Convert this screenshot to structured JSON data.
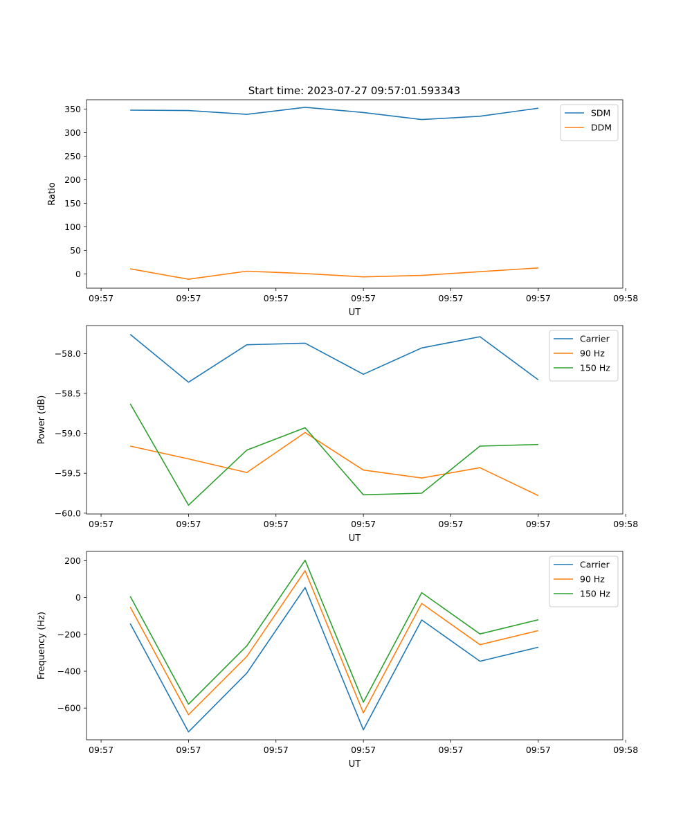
{
  "title": "Start time: 2023-07-27 09:57:01.593343",
  "colors": {
    "blue": "#1f77b4",
    "orange": "#ff7f0e",
    "green": "#2ca02c"
  },
  "chart_data": [
    {
      "type": "line",
      "title": "Start time: 2023-07-27 09:57:01.593343",
      "xlabel": "UT",
      "ylabel": "Ratio",
      "x": [
        1,
        2,
        3,
        4,
        5,
        6,
        7,
        8
      ],
      "xlim": [
        0.25,
        9.45
      ],
      "ylim": [
        -30,
        370
      ],
      "xtick_positions": [
        0.5,
        2,
        3.5,
        5,
        6.5,
        8,
        9.5
      ],
      "xtick_labels": [
        "09:57",
        "09:57",
        "09:57",
        "09:57",
        "09:57",
        "09:57",
        "09:58"
      ],
      "yticks": [
        0,
        50,
        100,
        150,
        200,
        250,
        300,
        350
      ],
      "ytick_labels": [
        "0",
        "50",
        "100",
        "150",
        "200",
        "250",
        "300",
        "350"
      ],
      "legend": "top-right",
      "series": [
        {
          "name": "SDM",
          "color": "#1f77b4",
          "values": [
            348,
            347,
            339,
            354,
            343,
            328,
            335,
            352
          ]
        },
        {
          "name": "DDM",
          "color": "#ff7f0e",
          "values": [
            11,
            -11,
            6,
            1,
            -6,
            -3,
            5,
            13
          ]
        }
      ]
    },
    {
      "type": "line",
      "title": "",
      "xlabel": "UT",
      "ylabel": "Power (dB)",
      "x": [
        1,
        2,
        3,
        4,
        5,
        6,
        7,
        8
      ],
      "xlim": [
        0.25,
        9.45
      ],
      "ylim": [
        -60.01,
        -57.65
      ],
      "xtick_positions": [
        0.5,
        2,
        3.5,
        5,
        6.5,
        8,
        9.5
      ],
      "xtick_labels": [
        "09:57",
        "09:57",
        "09:57",
        "09:57",
        "09:57",
        "09:57",
        "09:58"
      ],
      "yticks": [
        -60.0,
        -59.5,
        -59.0,
        -58.5,
        -58.0
      ],
      "ytick_labels": [
        "−60.0",
        "−59.5",
        "−59.0",
        "−58.5",
        "−58.0"
      ],
      "legend": "top-right",
      "series": [
        {
          "name": "Carrier",
          "color": "#1f77b4",
          "values": [
            -57.76,
            -58.36,
            -57.89,
            -57.87,
            -58.26,
            -57.93,
            -57.79,
            -58.33
          ]
        },
        {
          "name": "90 Hz",
          "color": "#ff7f0e",
          "values": [
            -59.16,
            -59.32,
            -59.49,
            -58.99,
            -59.46,
            -59.56,
            -59.43,
            -59.78
          ]
        },
        {
          "name": "150 Hz",
          "color": "#2ca02c",
          "values": [
            -58.63,
            -59.9,
            -59.21,
            -58.93,
            -59.77,
            -59.75,
            -59.16,
            -59.14
          ]
        }
      ]
    },
    {
      "type": "line",
      "title": "",
      "xlabel": "UT",
      "ylabel": "Frequency (Hz)",
      "x": [
        1,
        2,
        3,
        4,
        5,
        6,
        7,
        8
      ],
      "xlim": [
        0.25,
        9.45
      ],
      "ylim": [
        -772,
        250
      ],
      "xtick_positions": [
        0.5,
        2,
        3.5,
        5,
        6.5,
        8,
        9.5
      ],
      "xtick_labels": [
        "09:57",
        "09:57",
        "09:57",
        "09:57",
        "09:57",
        "09:57",
        "09:58"
      ],
      "yticks": [
        -600,
        -400,
        -200,
        0,
        200
      ],
      "ytick_labels": [
        "−600",
        "−400",
        "−200",
        "0",
        "200"
      ],
      "legend": "top-right",
      "series": [
        {
          "name": "Carrier",
          "color": "#1f77b4",
          "values": [
            -142,
            -729,
            -410,
            54,
            -718,
            -122,
            -346,
            -270
          ]
        },
        {
          "name": "90 Hz",
          "color": "#ff7f0e",
          "values": [
            -52,
            -636,
            -320,
            145,
            -626,
            -32,
            -256,
            -180
          ]
        },
        {
          "name": "150 Hz",
          "color": "#2ca02c",
          "values": [
            6,
            -579,
            -262,
            202,
            -568,
            26,
            -198,
            -121
          ]
        }
      ]
    }
  ]
}
